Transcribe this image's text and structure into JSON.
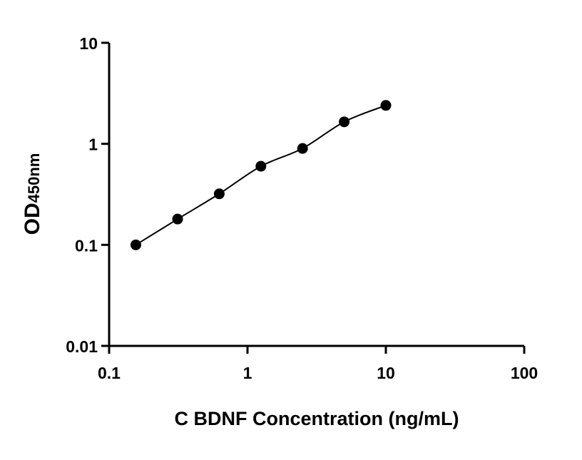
{
  "chart_data": {
    "type": "scatter",
    "title": "",
    "xlabel": "C BDNF Concentration (ng/mL)",
    "ylabel": {
      "main": "OD",
      "sub": "450nm"
    },
    "xscale": "log",
    "yscale": "log",
    "xlim": [
      0.1,
      100
    ],
    "ylim": [
      0.01,
      10
    ],
    "xticks": [
      "0.1",
      "1",
      "10",
      "100"
    ],
    "yticks": [
      "0.01",
      "0.1",
      "1",
      "10"
    ],
    "grid": false,
    "legend": "none",
    "fit_line": true,
    "series": [
      {
        "x": [
          0.156,
          0.3125,
          0.625,
          1.25,
          2.5,
          5,
          10
        ],
        "y": [
          0.1,
          0.18,
          0.32,
          0.6,
          0.9,
          1.65,
          2.4
        ]
      }
    ],
    "colors": {
      "marker": "#000000",
      "line": "#000000",
      "axis": "#000000"
    }
  }
}
